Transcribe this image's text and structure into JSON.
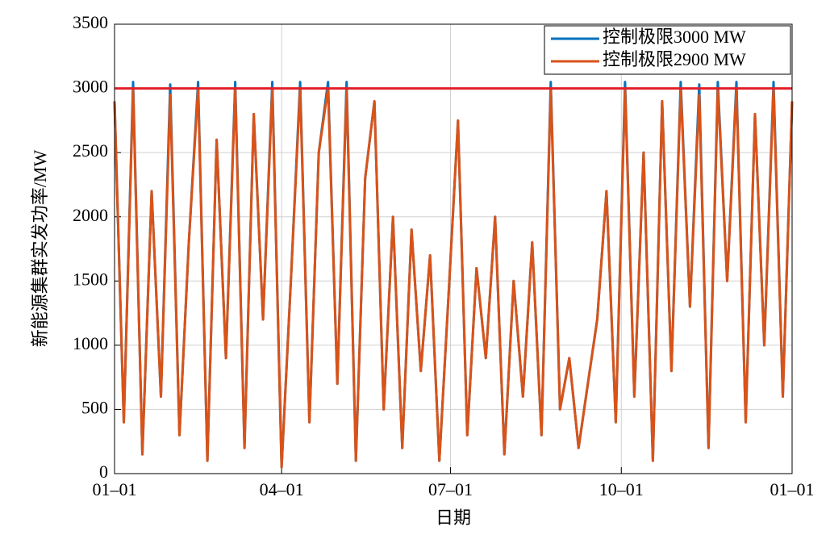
{
  "chart_data": {
    "type": "line",
    "xlabel": "日期",
    "ylabel": "新能源集群实发功率/MW",
    "x": [
      0,
      5,
      10,
      15,
      20,
      25,
      30,
      35,
      40,
      45,
      50,
      55,
      60,
      65,
      70,
      75,
      80,
      85,
      90,
      95,
      100,
      105,
      110,
      115,
      120,
      125,
      130,
      135,
      140,
      145,
      150,
      155,
      160,
      165,
      170,
      175,
      180,
      185,
      190,
      195,
      200,
      205,
      210,
      215,
      220,
      225,
      230,
      235,
      240,
      245,
      250,
      255,
      260,
      265,
      270,
      275,
      280,
      285,
      290,
      295,
      300,
      305,
      310,
      315,
      320,
      325,
      330,
      335,
      340,
      345,
      350,
      355,
      360,
      365
    ],
    "series": [
      {
        "name": "控制极限3000 MW",
        "color": "#0072bd",
        "values": [
          2900,
          400,
          3050,
          150,
          2200,
          600,
          3030,
          300,
          1800,
          3050,
          100,
          2600,
          900,
          3050,
          200,
          2800,
          1200,
          3050,
          50,
          1500,
          3050,
          400,
          2500,
          3050,
          700,
          3050,
          100,
          2300,
          2900,
          500,
          2000,
          200,
          1900,
          800,
          1700,
          100,
          1400,
          2750,
          300,
          1600,
          900,
          2000,
          150,
          1500,
          600,
          1800,
          300,
          3050,
          500,
          900,
          200,
          700,
          1200,
          2200,
          400,
          3050,
          600,
          2500,
          100,
          2900,
          800,
          3050,
          1300,
          3030,
          200,
          3050,
          1500,
          3050,
          400,
          2800,
          1000,
          3050,
          600,
          2900
        ]
      },
      {
        "name": "控制极限2900 MW",
        "color": "#d95319",
        "values": [
          2900,
          400,
          3000,
          150,
          2200,
          600,
          2950,
          300,
          1800,
          3000,
          100,
          2600,
          900,
          3000,
          200,
          2800,
          1200,
          3000,
          50,
          1500,
          3000,
          400,
          2500,
          3000,
          700,
          3000,
          100,
          2300,
          2900,
          500,
          2000,
          200,
          1900,
          800,
          1700,
          100,
          1400,
          2750,
          300,
          1600,
          900,
          2000,
          150,
          1500,
          600,
          1800,
          300,
          3000,
          500,
          900,
          200,
          700,
          1200,
          2200,
          400,
          3000,
          600,
          2500,
          100,
          2900,
          800,
          3000,
          1300,
          2950,
          200,
          3000,
          1500,
          3000,
          400,
          2800,
          1000,
          3000,
          600,
          2900
        ]
      }
    ],
    "reference_line": {
      "value": 3000,
      "color": "#e3202a"
    },
    "xlim": [
      0,
      365
    ],
    "xticks": [
      {
        "value": 0,
        "label": "01–01"
      },
      {
        "value": 90,
        "label": "04–01"
      },
      {
        "value": 181,
        "label": "07–01"
      },
      {
        "value": 273,
        "label": "10–01"
      },
      {
        "value": 365,
        "label": "01–01"
      }
    ],
    "ylim": [
      0,
      3500
    ],
    "yticks": [
      0,
      500,
      1000,
      1500,
      2000,
      2500,
      3000,
      3500
    ],
    "grid": true,
    "legend": "upper-right"
  }
}
